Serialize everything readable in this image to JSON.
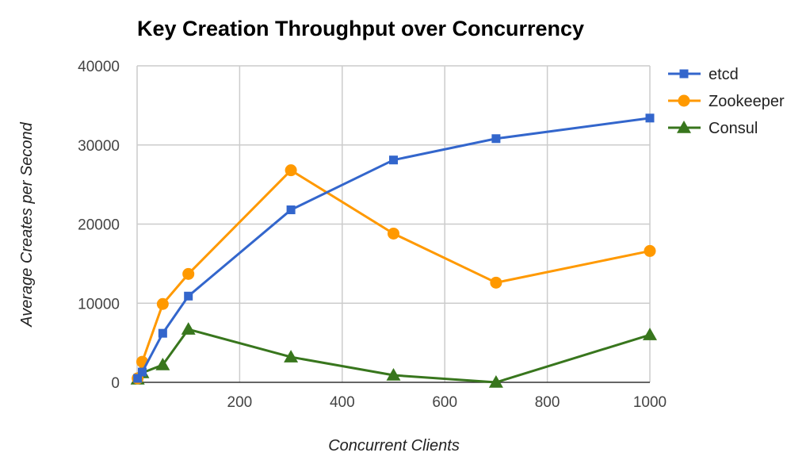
{
  "chart_data": {
    "type": "line",
    "title": "Key Creation Throughput over Concurrency",
    "xlabel": "Concurrent Clients",
    "ylabel": "Average Creates per Second",
    "xlim": [
      0,
      1000
    ],
    "ylim": [
      0,
      40000
    ],
    "x_ticks": [
      200,
      400,
      600,
      800,
      1000
    ],
    "x_tick_labels": [
      "200",
      "400",
      "600",
      "800",
      "1000"
    ],
    "y_ticks": [
      0,
      10000,
      20000,
      30000,
      40000
    ],
    "y_tick_labels": [
      "0",
      "10000",
      "20000",
      "30000",
      "40000"
    ],
    "grid": true,
    "legend_position": "right",
    "series": [
      {
        "name": "etcd",
        "color": "#3366cc",
        "marker": "square",
        "x": [
          1,
          10,
          50,
          100,
          300,
          500,
          700,
          1000
        ],
        "values": [
          500,
          1300,
          6200,
          10900,
          21800,
          28100,
          30800,
          33400
        ]
      },
      {
        "name": "Zookeeper",
        "color": "#ff9900",
        "marker": "circle",
        "x": [
          1,
          10,
          50,
          100,
          300,
          500,
          700,
          1000
        ],
        "values": [
          500,
          2600,
          9900,
          13700,
          26800,
          18800,
          12600,
          16600
        ]
      },
      {
        "name": "Consul",
        "color": "#38761d",
        "marker": "triangle",
        "x": [
          1,
          10,
          50,
          100,
          300,
          500,
          700,
          1000
        ],
        "values": [
          400,
          1200,
          2200,
          6700,
          3200,
          900,
          0,
          6000
        ]
      }
    ]
  }
}
